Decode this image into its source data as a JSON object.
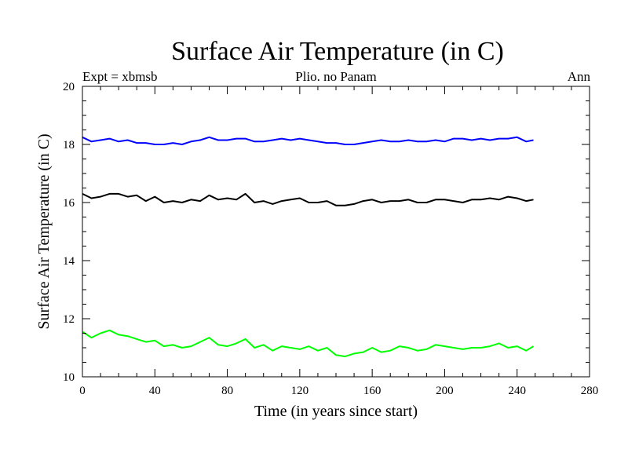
{
  "chart_data": {
    "type": "line",
    "title": "Surface Air Temperature (in C)",
    "subtitle_left": "Expt = xbmsb",
    "subtitle_center": "Plio. no Panam",
    "subtitle_right": "Ann",
    "xlabel": "Time (in years since start)",
    "ylabel": "Surface Air Temperature (in C)",
    "xlim": [
      0,
      280
    ],
    "ylim": [
      10,
      20
    ],
    "xticks": [
      0,
      40,
      80,
      120,
      160,
      200,
      240,
      280
    ],
    "yticks": [
      10,
      12,
      14,
      16,
      18,
      20
    ],
    "grid": false,
    "series": [
      {
        "color": "#0000ff",
        "x": [
          0,
          5,
          10,
          15,
          20,
          25,
          30,
          35,
          40,
          45,
          50,
          55,
          60,
          65,
          70,
          75,
          80,
          85,
          90,
          95,
          100,
          105,
          110,
          115,
          120,
          125,
          130,
          135,
          140,
          145,
          150,
          155,
          160,
          165,
          170,
          175,
          180,
          185,
          190,
          195,
          200,
          205,
          210,
          215,
          220,
          225,
          230,
          235,
          240,
          245,
          249
        ],
        "y": [
          18.25,
          18.1,
          18.15,
          18.2,
          18.1,
          18.15,
          18.05,
          18.05,
          18.0,
          18.0,
          18.05,
          18.0,
          18.1,
          18.15,
          18.25,
          18.15,
          18.15,
          18.2,
          18.2,
          18.1,
          18.1,
          18.15,
          18.2,
          18.15,
          18.2,
          18.15,
          18.1,
          18.05,
          18.05,
          18.0,
          18.0,
          18.05,
          18.1,
          18.15,
          18.1,
          18.1,
          18.15,
          18.1,
          18.1,
          18.15,
          18.1,
          18.2,
          18.2,
          18.15,
          18.2,
          18.15,
          18.2,
          18.2,
          18.25,
          18.1,
          18.15
        ]
      },
      {
        "color": "#000000",
        "x": [
          0,
          5,
          10,
          15,
          20,
          25,
          30,
          35,
          40,
          45,
          50,
          55,
          60,
          65,
          70,
          75,
          80,
          85,
          90,
          95,
          100,
          105,
          110,
          115,
          120,
          125,
          130,
          135,
          140,
          145,
          150,
          155,
          160,
          165,
          170,
          175,
          180,
          185,
          190,
          195,
          200,
          205,
          210,
          215,
          220,
          225,
          230,
          235,
          240,
          245,
          249
        ],
        "y": [
          16.3,
          16.15,
          16.2,
          16.3,
          16.3,
          16.2,
          16.25,
          16.05,
          16.2,
          16.0,
          16.05,
          16.0,
          16.1,
          16.05,
          16.25,
          16.1,
          16.15,
          16.1,
          16.3,
          16.0,
          16.05,
          15.95,
          16.05,
          16.1,
          16.15,
          16.0,
          16.0,
          16.05,
          15.9,
          15.9,
          15.95,
          16.05,
          16.1,
          16.0,
          16.05,
          16.05,
          16.1,
          16.0,
          16.0,
          16.1,
          16.1,
          16.05,
          16.0,
          16.1,
          16.1,
          16.15,
          16.1,
          16.2,
          16.15,
          16.05,
          16.1
        ]
      },
      {
        "color": "#00ff00",
        "x": [
          0,
          5,
          10,
          15,
          20,
          25,
          30,
          35,
          40,
          45,
          50,
          55,
          60,
          65,
          70,
          75,
          80,
          85,
          90,
          95,
          100,
          105,
          110,
          115,
          120,
          125,
          130,
          135,
          140,
          145,
          150,
          155,
          160,
          165,
          170,
          175,
          180,
          185,
          190,
          195,
          200,
          205,
          210,
          215,
          220,
          225,
          230,
          235,
          240,
          245,
          249
        ],
        "y": [
          11.55,
          11.35,
          11.5,
          11.6,
          11.45,
          11.4,
          11.3,
          11.2,
          11.25,
          11.05,
          11.1,
          11.0,
          11.05,
          11.2,
          11.35,
          11.1,
          11.05,
          11.15,
          11.3,
          11.0,
          11.1,
          10.9,
          11.05,
          11.0,
          10.95,
          11.05,
          10.9,
          11.0,
          10.75,
          10.7,
          10.8,
          10.85,
          11.0,
          10.85,
          10.9,
          11.05,
          11.0,
          10.9,
          10.95,
          11.1,
          11.05,
          11.0,
          10.95,
          11.0,
          11.0,
          11.05,
          11.15,
          11.0,
          11.05,
          10.9,
          11.05
        ]
      }
    ]
  }
}
